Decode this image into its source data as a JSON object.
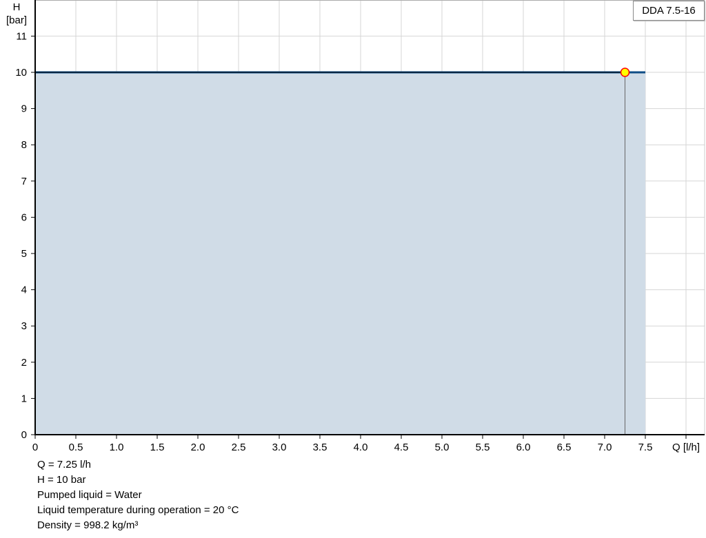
{
  "chart_data": {
    "type": "area",
    "title": "",
    "legend": "DDA 7.5-16",
    "legend_position": "top-right",
    "xlabel": "Q [l/h]",
    "ylabel_line1": "H",
    "ylabel_line2": "[bar]",
    "xlim": [
      0,
      8.0
    ],
    "ylim": [
      0,
      12
    ],
    "x_ticks": [
      "0",
      "0.5",
      "1.0",
      "1.5",
      "2.0",
      "2.5",
      "3.0",
      "3.5",
      "4.0",
      "4.5",
      "5.0",
      "5.5",
      "6.0",
      "6.5",
      "7.0",
      "7.5"
    ],
    "y_ticks": [
      "0",
      "1",
      "2",
      "3",
      "4",
      "5",
      "6",
      "7",
      "8",
      "9",
      "10",
      "11"
    ],
    "grid": true,
    "series": [
      {
        "x": [
          0,
          7.5
        ],
        "y": [
          10,
          10
        ]
      }
    ],
    "operating_point": {
      "x": 7.25,
      "y": 10
    },
    "colors": {
      "curve": "#0e4c85",
      "fill": "#d0dce7",
      "point": "#ffff00",
      "point_border": "#ff0000",
      "grid": "#d6d6d6"
    }
  },
  "info": {
    "lines": [
      "Q = 7.25 l/h",
      "H = 10 bar",
      "Pumped liquid = Water",
      "Liquid temperature during operation = 20 °C",
      "Density = 998.2 kg/m³"
    ]
  }
}
